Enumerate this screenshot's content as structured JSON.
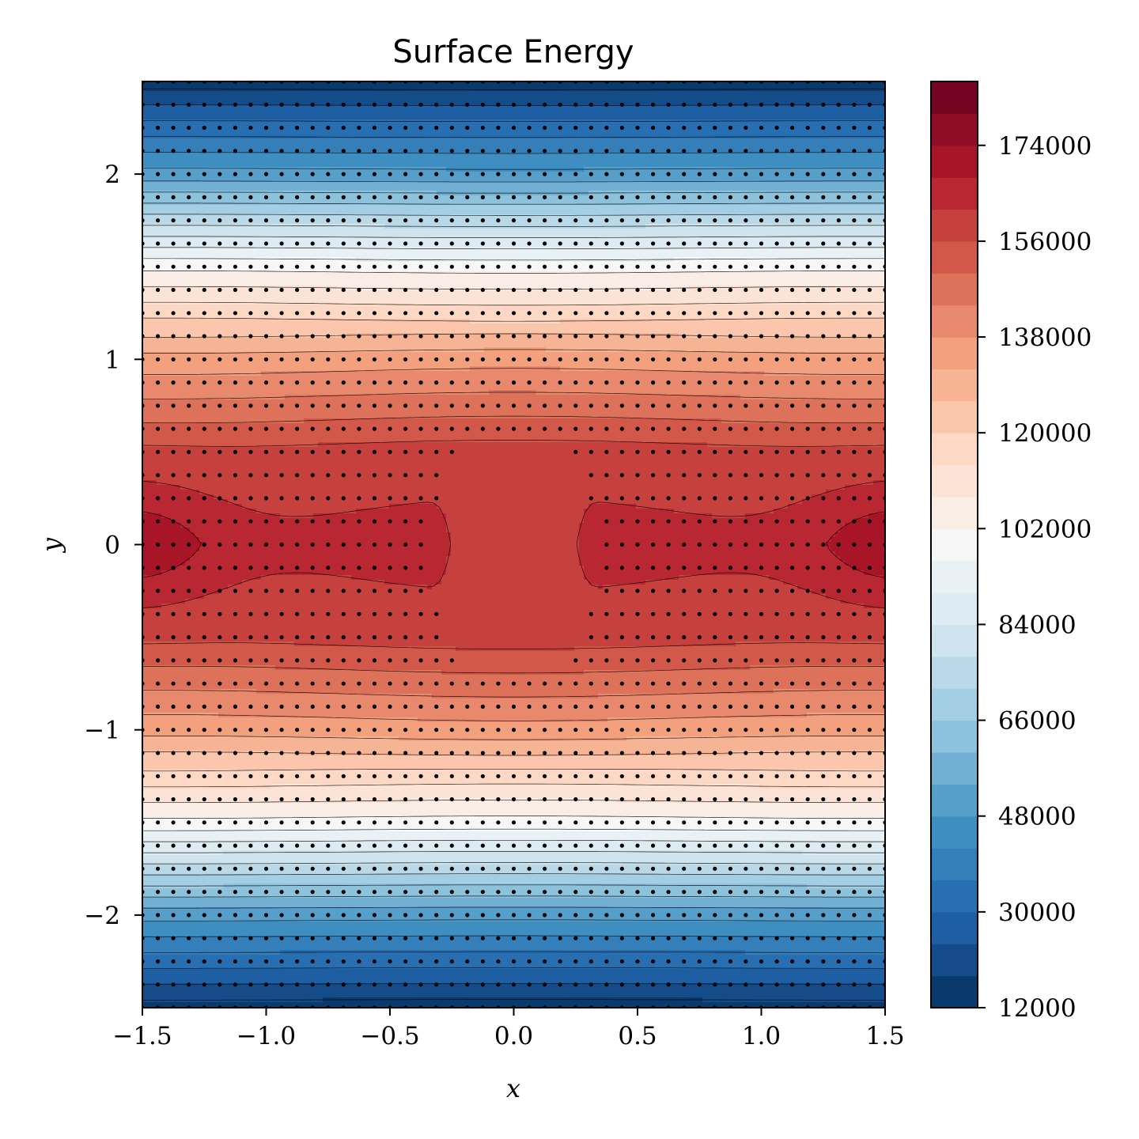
{
  "chart_data": {
    "type": "contour",
    "title": "Surface Energy",
    "xlabel": "x",
    "ylabel": "y",
    "xlim": [
      -1.5,
      1.5
    ],
    "ylim": [
      -2.5,
      2.5
    ],
    "x_ticks": [
      -1.5,
      -1.0,
      -0.5,
      0.0,
      0.5,
      1.0,
      1.5
    ],
    "x_tick_labels": [
      "−1.5",
      "−1.0",
      "−0.5",
      "0.0",
      "0.5",
      "1.0",
      "1.5"
    ],
    "y_ticks": [
      -2,
      -1,
      0,
      1,
      2
    ],
    "y_tick_labels": [
      "−2",
      "−1",
      "0",
      "1",
      "2"
    ],
    "colorbar": {
      "colormap": "RdBu_r",
      "range": [
        12000,
        186000
      ],
      "level_step": 6000,
      "ticks": [
        12000,
        30000,
        48000,
        66000,
        84000,
        102000,
        120000,
        138000,
        156000,
        174000
      ],
      "tick_labels": [
        "12000",
        "30000",
        "48000",
        "66000",
        "84000",
        "102000",
        "120000",
        "138000",
        "156000",
        "174000"
      ]
    },
    "field": {
      "description_shape": "approximately symmetric in y with peak near y=0",
      "value_at_y": [
        {
          "y": 2.5,
          "value": 15000
        },
        {
          "y": 2.0,
          "value": 50000
        },
        {
          "y": 1.5,
          "value": 100000
        },
        {
          "y": 1.0,
          "value": 135000
        },
        {
          "y": 0.5,
          "value": 158000
        },
        {
          "y": 0.0,
          "value": 164000
        },
        {
          "y": -0.5,
          "value": 158000
        },
        {
          "y": -1.0,
          "value": 135000
        },
        {
          "y": -1.5,
          "value": 100000
        },
        {
          "y": -2.0,
          "value": 50000
        },
        {
          "y": -2.5,
          "value": 15000
        }
      ],
      "edge_maximum_value": 174000,
      "central_plateau_value": 156000
    },
    "stippling": {
      "marker": "dot",
      "color": "#000000",
      "x_spacing": 0.0625,
      "y_spacing": 0.0625
    }
  }
}
